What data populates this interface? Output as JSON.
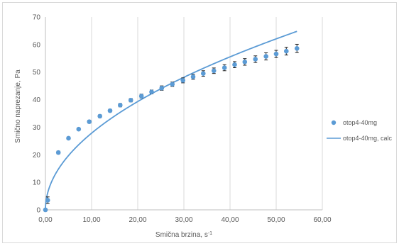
{
  "chart_data": {
    "type": "scatter",
    "xlabel": "Smična brzina, s",
    "xlabel_superscript": "-1",
    "ylabel": "Smično naprezanje, Pa",
    "xlim": [
      0,
      60
    ],
    "ylim": [
      0,
      70
    ],
    "x_ticks": [
      "0,00",
      "10,00",
      "20,00",
      "30,00",
      "40,00",
      "50,00",
      "60,00"
    ],
    "y_ticks": [
      "0",
      "10",
      "20",
      "30",
      "40",
      "50",
      "60",
      "70"
    ],
    "x_tick_values": [
      0,
      10,
      20,
      30,
      40,
      50,
      60
    ],
    "y_tick_values": [
      0,
      10,
      20,
      30,
      40,
      50,
      60,
      70
    ],
    "grid": "vertical",
    "legend_position": "right",
    "series": [
      {
        "name": "otop4-40mg",
        "kind": "scatter",
        "color": "#5b9bd5",
        "x": [
          0,
          0.5,
          2.8,
          5.0,
          7.2,
          9.5,
          11.8,
          14.0,
          16.2,
          18.5,
          20.8,
          23.0,
          25.2,
          27.5,
          29.8,
          32.0,
          34.2,
          36.5,
          38.8,
          41.0,
          43.2,
          45.5,
          47.8,
          50.0,
          52.2,
          54.5
        ],
        "y": [
          0,
          3.5,
          20.8,
          26.0,
          29.3,
          32.0,
          34.0,
          36.0,
          38.0,
          39.8,
          41.3,
          42.8,
          44.2,
          45.6,
          47.0,
          48.3,
          49.5,
          50.5,
          51.6,
          52.7,
          53.7,
          54.7,
          55.7,
          56.6,
          57.6,
          58.6
        ],
        "error": [
          0,
          1.2,
          0.5,
          0.4,
          0.4,
          0.5,
          0.5,
          0.5,
          0.6,
          0.6,
          0.7,
          0.7,
          0.8,
          0.8,
          0.9,
          0.9,
          1.0,
          1.0,
          1.1,
          1.1,
          1.2,
          1.2,
          1.3,
          1.3,
          1.4,
          1.5
        ]
      },
      {
        "name": "otop4-40mg, calc",
        "kind": "line",
        "color": "#5b9bd5"
      }
    ]
  }
}
